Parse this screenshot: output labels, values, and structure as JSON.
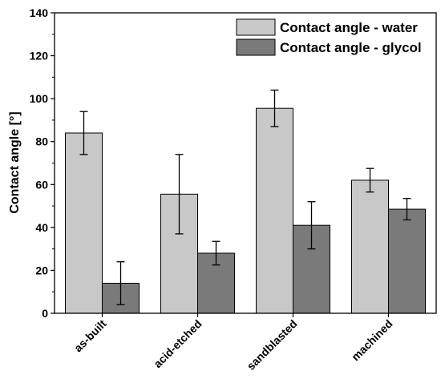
{
  "chart_data": {
    "type": "bar",
    "xlabel": "",
    "ylabel": "Contact angle [°]",
    "ylim": [
      0,
      140
    ],
    "yticks": [
      "0",
      "20",
      "40",
      "60",
      "80",
      "100",
      "120",
      "140"
    ],
    "grid": false,
    "legend_position": "top-right",
    "categories": [
      "as-built",
      "acid-etched",
      "sandblasted",
      "machined"
    ],
    "series": [
      {
        "name": "Contact angle - water",
        "color": "#c8c8c8",
        "values": [
          84,
          55.5,
          95.5,
          62
        ],
        "errors": [
          10,
          18.5,
          8.5,
          5.5
        ]
      },
      {
        "name": "Contact angle - glycol",
        "color": "#7a7a7a",
        "values": [
          14,
          28,
          41,
          48.5
        ],
        "errors": [
          10,
          5.5,
          11,
          5
        ]
      }
    ]
  }
}
